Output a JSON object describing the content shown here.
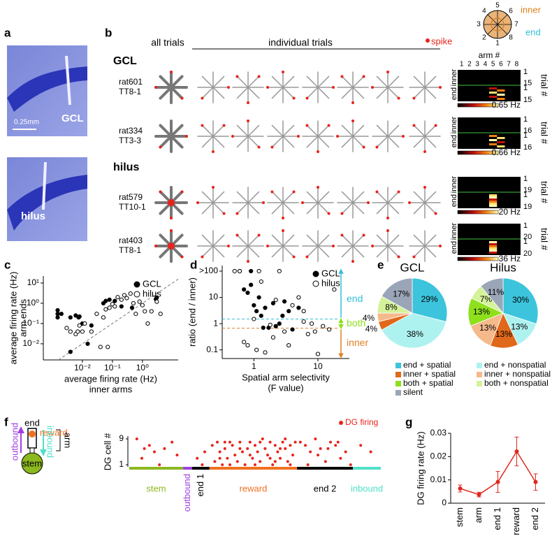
{
  "panel_labels": [
    "a",
    "b",
    "c",
    "d",
    "e",
    "f",
    "g"
  ],
  "panel_a": {
    "scale": "0.25mm",
    "top_label": "GCL",
    "bottom_label": "hilus"
  },
  "panel_b": {
    "all_trials": "all trials",
    "individual_trials": "individual trials",
    "spike": "spike",
    "groups": [
      "GCL",
      "hilus"
    ],
    "rows": [
      {
        "rat": "rat601",
        "tetrode": "TT8-1"
      },
      {
        "rat": "rat334",
        "tetrode": "TT3-3"
      },
      {
        "rat": "rat579",
        "tetrode": "TT10-1"
      },
      {
        "rat": "rat403",
        "tetrode": "TT8-1"
      }
    ],
    "inset": {
      "arms": [
        1,
        2,
        3,
        4,
        5,
        6,
        7,
        8
      ],
      "inner": "inner",
      "end": "end"
    },
    "heatmap_axis": {
      "title": "arm #",
      "arms": [
        1,
        2,
        3,
        4,
        5,
        6,
        7,
        8
      ],
      "inner": "inner",
      "end": "end",
      "trial": "trial #"
    },
    "heatmaps": [
      {
        "trial_ticks": [
          1,
          15,
          1,
          15
        ],
        "max_label": "0.65 Hz"
      },
      {
        "trial_ticks": [
          1,
          16,
          1,
          16
        ],
        "max_label": "0.66 Hz"
      },
      {
        "trial_ticks": [
          1,
          19,
          1,
          19
        ],
        "max_label": "20 Hz"
      },
      {
        "trial_ticks": [
          1,
          20,
          1,
          20
        ],
        "max_label": "36 Hz"
      }
    ]
  },
  "panel_f": {
    "end": "end",
    "reward": "reward",
    "arm": "arm",
    "outbound": "outbound",
    "inbound": "inbound",
    "stem": "stem"
  },
  "chart_data": [
    {
      "type": "scatter",
      "xlog": true,
      "ylog": true,
      "diagonal": true,
      "xlabel": [
        "average firing rate (Hz)",
        "inner arms"
      ],
      "ylabel": [
        "average firing rate (Hz)",
        "arm ends"
      ],
      "xlim": [
        0.0005,
        15.5
      ],
      "ylim": [
        0.0016,
        22
      ],
      "xticks": [
        {
          "value": 0.01,
          "label": "10⁻²"
        },
        {
          "value": 0.1,
          "label": "10⁻¹"
        },
        {
          "value": 1,
          "label": "10⁰"
        }
      ],
      "yticks": [
        {
          "value": 10,
          "label": "10¹"
        },
        {
          "value": 1,
          "label": "10⁰"
        },
        {
          "value": 0.1,
          "label": "10⁻¹"
        },
        {
          "value": 0.01,
          "label": "10⁻²"
        }
      ],
      "legend": "upper right",
      "series": [
        {
          "name": "GCL",
          "filled": true,
          "color": "#000000",
          "x": [
            0.0015,
            0.0015,
            0.0015,
            0.002,
            0.004,
            0.006,
            0.0075,
            0.008,
            0.01,
            0.015,
            0.02,
            0.05,
            0.06,
            0.08,
            0.12,
            0.2,
            0.45,
            2.8,
            3,
            0.004
          ],
          "y": [
            0.45,
            0.3,
            0.2,
            0.3,
            0.2,
            0.25,
            0.2,
            0.22,
            0.1,
            0.01,
            0.08,
            1,
            1.3,
            1.5,
            1.3,
            0.7,
            0.6,
            1.6,
            1.9,
            0.004
          ]
        },
        {
          "name": "hilus",
          "filled": false,
          "color": "#000000",
          "x": [
            0.003,
            0.004,
            0.006,
            0.007,
            0.008,
            0.01,
            0.012,
            0.02,
            0.03,
            0.05,
            0.06,
            0.08,
            0.1,
            0.12,
            0.15,
            0.2,
            0.25,
            0.3,
            0.4,
            0.5,
            0.6,
            0.8,
            1,
            1.2,
            1.5,
            2,
            3,
            4,
            0.04,
            0.07
          ],
          "y": [
            0.06,
            0.04,
            0.03,
            0.04,
            0.08,
            0.04,
            0.1,
            0.04,
            0.3,
            0.2,
            0.5,
            0.6,
            0.9,
            0.7,
            2,
            1.5,
            2.5,
            1.8,
            3,
            1,
            0.3,
            1.2,
            0.8,
            0.4,
            0.1,
            0.4,
            1.2,
            0.3,
            0.007,
            0.007
          ]
        }
      ]
    },
    {
      "type": "scatter",
      "xlog": true,
      "ylog": true,
      "xlabel": [
        "Spatial arm selectivity",
        "(F value)"
      ],
      "ylabel": [
        "ratio (end / inner)"
      ],
      "xlim": [
        0.32,
        31
      ],
      "ylim": [
        0.047,
        163
      ],
      "xticks": [
        1,
        10
      ],
      "yticks": [
        {
          "value": 100,
          "label": ">100"
        },
        10,
        1,
        0.1
      ],
      "hlines": [
        {
          "value": 1.5,
          "color": "#33c0d8",
          "label": "end"
        },
        {
          "value": 0.67,
          "color": "#e08020",
          "label": "inner"
        }
      ],
      "between_label": "both",
      "legend": "upper right",
      "series": [
        {
          "name": "GCL",
          "filled": true,
          "color": "#000000",
          "x": [
            0.6,
            0.7,
            0.8,
            0.9,
            1,
            1.1,
            1.2,
            1.3,
            1.5,
            1.7,
            2,
            2.2,
            2.5,
            3,
            3.5,
            4,
            5,
            0.9,
            1.4,
            2.8
          ],
          "y": [
            100,
            20,
            15,
            30,
            5,
            3,
            10,
            2,
            4,
            0.7,
            6,
            0.8,
            1,
            7,
            3,
            0.6,
            4,
            100,
            0.7,
            2
          ]
        },
        {
          "name": "hilus",
          "filled": false,
          "color": "#000000",
          "x": [
            0.5,
            0.6,
            0.8,
            1,
            1.2,
            1.5,
            2,
            2.5,
            3,
            4,
            5,
            6,
            7,
            8,
            10,
            12,
            15,
            18,
            0.7,
            1.8,
            3.5,
            6,
            9,
            1.1,
            2.2,
            1.3
          ],
          "y": [
            100,
            100,
            0.15,
            1.5,
            100,
            0.08,
            0.3,
            100,
            0.5,
            5,
            10,
            3,
            0.4,
            1,
            0.07,
            0.8,
            0.6,
            20,
            0.2,
            0.9,
            0.15,
            1.2,
            0.5,
            0.1,
            8,
            40
          ]
        }
      ]
    },
    {
      "type": "pie",
      "title": "GCL",
      "categories": [
        "end + spatial",
        "end + nonspatial",
        "inner + spatial",
        "inner + nonspatial",
        "both + spatial",
        "both + nonspatial",
        "silent"
      ],
      "colors": [
        "#3cc4dc",
        "#aef2f0",
        "#e0681a",
        "#f5b98c",
        "#8ee01c",
        "#d4f29a",
        "#9aa6b8"
      ],
      "values": [
        29,
        38,
        4,
        4,
        0,
        8,
        17
      ],
      "value_labels": [
        "29%",
        "38%",
        "4%",
        "4%",
        null,
        "8%",
        "17%"
      ]
    },
    {
      "type": "pie",
      "title": "Hilus",
      "values": [
        30,
        13,
        13,
        13,
        13,
        7,
        11
      ],
      "value_labels": [
        "30%",
        "13%",
        "13%",
        "13%",
        "13%",
        "7%",
        "11%"
      ]
    },
    {
      "type": "raster",
      "legend": "DG firing",
      "ylabel": "DG cell #",
      "color": "#e8231b",
      "xlim": [
        0,
        100
      ],
      "ylim": [
        1,
        9
      ],
      "yticks": [
        1,
        9
      ],
      "segments": [
        {
          "label": "stem",
          "start": 0,
          "end": 21.4,
          "color": "#8cb820"
        },
        {
          "label": "outbound",
          "start": 21.4,
          "end": 25,
          "color": "#a040e0"
        },
        {
          "label": "end 1",
          "start": 25,
          "end": 31.9,
          "color": "#000000"
        },
        {
          "label": "reward",
          "start": 31.9,
          "end": 66.7,
          "color": "#f07020"
        },
        {
          "label": "end 2",
          "start": 66.7,
          "end": 88.9,
          "color": "#000000"
        },
        {
          "label": "inbound",
          "start": 88.9,
          "end": 100,
          "color": "#50e0c8"
        }
      ],
      "x": [
        3,
        8,
        10,
        14,
        5,
        12,
        17,
        19,
        6,
        27,
        29,
        30,
        33,
        34,
        35,
        36,
        37,
        38,
        39,
        40,
        41,
        42,
        43,
        44,
        45,
        46,
        47,
        48,
        49,
        50,
        51,
        52,
        53,
        54,
        55,
        56,
        57,
        58,
        59,
        60,
        61,
        62,
        63,
        64,
        65,
        66,
        36,
        40,
        44,
        48,
        52,
        56,
        60,
        64,
        38,
        50,
        58,
        62,
        68,
        70,
        72,
        74,
        76,
        78,
        80,
        82,
        84,
        86,
        88,
        71,
        75,
        79,
        83,
        92,
        96
      ],
      "y": [
        9,
        7,
        5,
        6,
        3,
        1,
        8,
        4,
        6,
        3,
        1,
        5,
        7,
        2,
        8,
        5,
        1,
        6,
        3,
        8,
        7,
        4,
        2,
        8,
        5,
        1,
        6,
        8,
        3,
        7,
        5,
        2,
        9,
        6,
        4,
        8,
        1,
        7,
        5,
        3,
        8,
        6,
        2,
        7,
        4,
        8,
        3,
        1,
        6,
        4,
        8,
        3,
        6,
        1,
        8,
        1,
        2,
        9,
        8,
        7,
        5,
        9,
        6,
        2,
        8,
        7,
        3,
        5,
        1,
        1,
        4,
        6,
        8,
        7,
        5
      ]
    },
    {
      "type": "line",
      "ylabel": "DG firing rate (Hz)",
      "color": "#e0281e",
      "categories": [
        "stem",
        "arm",
        "end 1",
        "reward",
        "end 2"
      ],
      "values": [
        0.0063,
        0.0037,
        0.0091,
        0.0222,
        0.0091
      ],
      "errors": [
        0.0015,
        0.001,
        0.0045,
        0.0062,
        0.0035
      ],
      "ylim": [
        0,
        0.03
      ],
      "yticks": [
        0,
        0.01,
        0.02,
        0.03
      ]
    }
  ]
}
